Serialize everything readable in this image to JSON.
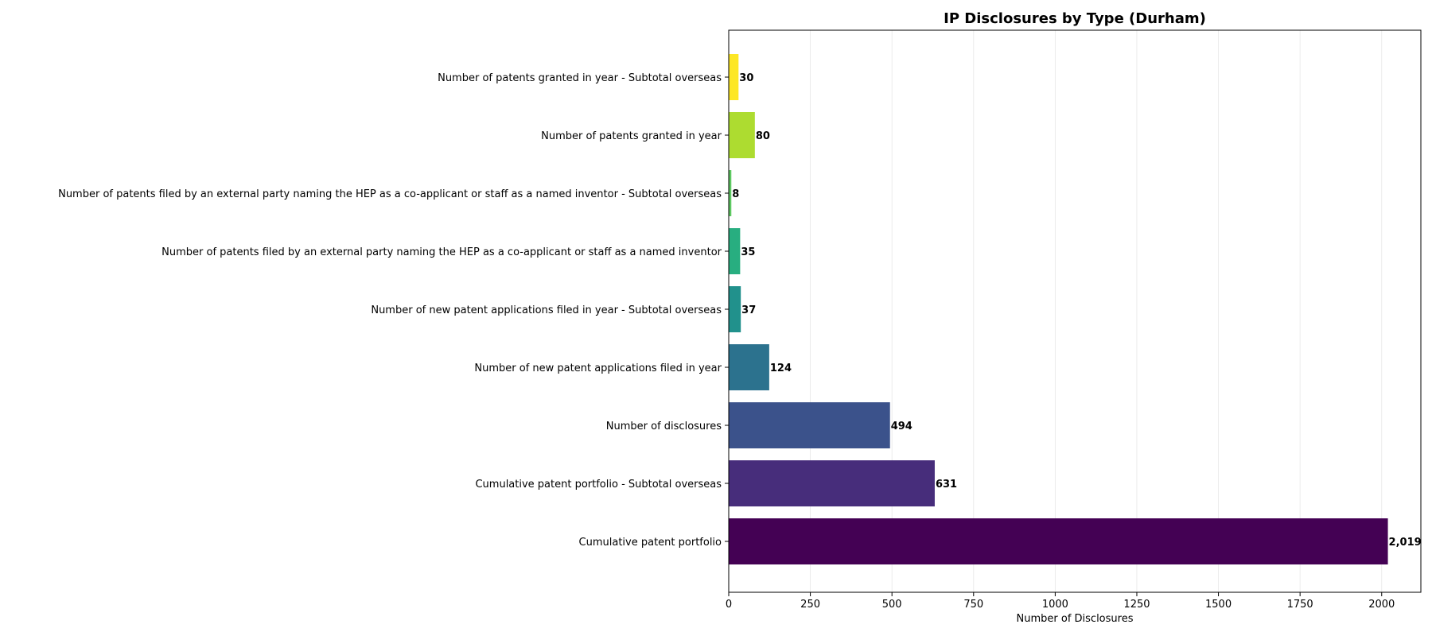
{
  "chart_data": {
    "type": "bar",
    "orientation": "horizontal",
    "title": "IP Disclosures by Type (Durham)",
    "xlabel": "Number of Disclosures",
    "ylabel": "",
    "xlim": [
      0,
      2120
    ],
    "xticks": [
      0,
      250,
      500,
      750,
      1000,
      1250,
      1500,
      1750,
      2000
    ],
    "grid": "x",
    "categories": [
      "Cumulative patent portfolio",
      "Cumulative patent portfolio - Subtotal overseas",
      "Number of disclosures",
      "Number of new patent applications filed in year",
      "Number of new patent applications filed in year - Subtotal overseas",
      "Number of patents filed by an external party naming the HEP as a co-applicant or staff as a named inventor",
      "Number of patents filed by an external party naming the HEP as a co-applicant or staff as a named inventor - Subtotal overseas",
      "Number of patents granted in year",
      "Number of patents granted in year - Subtotal overseas"
    ],
    "values": [
      2019,
      631,
      494,
      124,
      37,
      35,
      8,
      80,
      30
    ],
    "value_labels": [
      "2,019",
      "631",
      "494",
      "124",
      "37",
      "35",
      "8",
      "80",
      "30"
    ],
    "colors": [
      "#440154",
      "#472d7b",
      "#3b528b",
      "#2c728e",
      "#21918c",
      "#28ae80",
      "#5ec962",
      "#addc30",
      "#fde725"
    ]
  }
}
